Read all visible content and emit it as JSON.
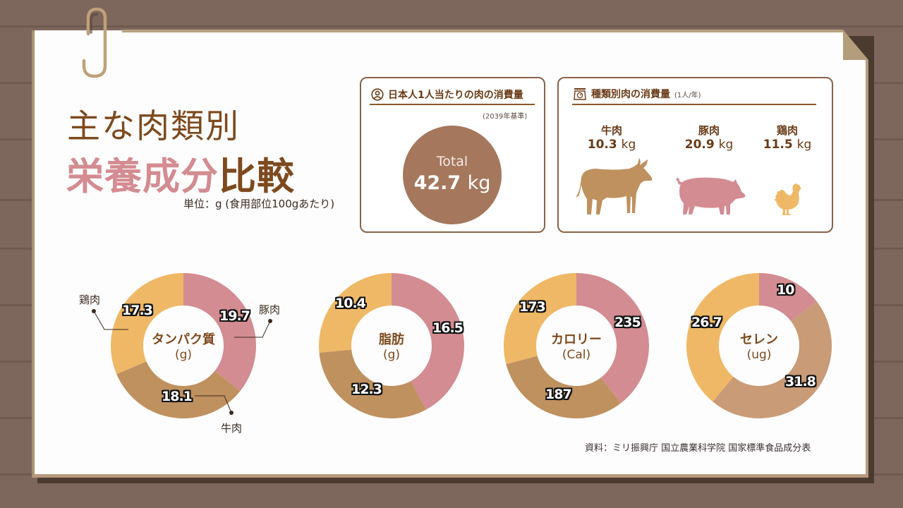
{
  "title": {
    "line1": "主な肉類別",
    "line2_pink": "栄養成分",
    "line2_brown": "比較",
    "unit_note": "単位：g (食用部位100gあたり)"
  },
  "per_capita_card": {
    "icon": "user-circle-icon",
    "heading": "日本人1人当たりの肉の消費量",
    "basis": "(2039年基準)",
    "total_label": "Total",
    "total_value": "42.7",
    "total_unit": "kg"
  },
  "by_type_card": {
    "icon": "scale-icon",
    "heading": "種類別肉の消費量",
    "heading_note": "(1人/年)",
    "meats": [
      {
        "name": "牛肉",
        "value": "10.3",
        "unit": "kg",
        "icon": "cow-icon",
        "color": "#bf915f"
      },
      {
        "name": "豚肉",
        "value": "20.9",
        "unit": "kg",
        "icon": "pig-icon",
        "color": "#d38c91"
      },
      {
        "name": "鶏肉",
        "value": "11.5",
        "unit": "kg",
        "icon": "chicken-icon",
        "color": "#efb866"
      }
    ]
  },
  "callouts": {
    "chicken": "鶏肉",
    "pork": "豚肉",
    "beef": "牛肉"
  },
  "colors": {
    "pork": "#d38c91",
    "beef": "#bf915f",
    "beef_selenium": "#c99b76",
    "chicken": "#efb866",
    "brown_text": "#7d4a1e"
  },
  "chart_data": [
    {
      "type": "pie",
      "title": "タンパク質",
      "unit": "(g)",
      "categories": [
        "豚肉",
        "牛肉",
        "鶏肉"
      ],
      "values": [
        19.7,
        18.1,
        17.3
      ],
      "labels": [
        "19.7",
        "18.1",
        "17.3"
      ]
    },
    {
      "type": "pie",
      "title": "脂肪",
      "unit": "(g)",
      "categories": [
        "豚肉",
        "牛肉",
        "鶏肉"
      ],
      "values": [
        16.5,
        12.3,
        10.4
      ],
      "labels": [
        "16.5",
        "12.3",
        "10.4"
      ]
    },
    {
      "type": "pie",
      "title": "カロリー",
      "unit": "(Cal)",
      "categories": [
        "豚肉",
        "牛肉",
        "鶏肉"
      ],
      "values": [
        235,
        187,
        173
      ],
      "labels": [
        "235",
        "187",
        "173"
      ]
    },
    {
      "type": "pie",
      "title": "セレン",
      "unit": "(ug)",
      "categories": [
        "豚肉",
        "牛肉",
        "鶏肉"
      ],
      "values": [
        10,
        31.8,
        26.7
      ],
      "labels": [
        "10",
        "31.8",
        "26.7"
      ]
    }
  ],
  "source": "資料：ミリ振興庁 国立農業科学院 国家標準食品成分表"
}
